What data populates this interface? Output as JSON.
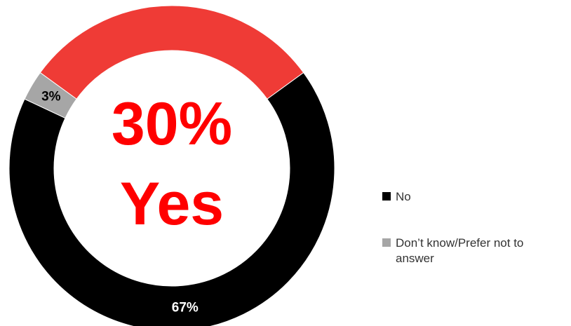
{
  "chart_data": {
    "type": "pie",
    "variant": "donut",
    "slices": [
      {
        "label": "Yes",
        "value": 30,
        "color": "#ef3b36",
        "data_label": ""
      },
      {
        "label": "No",
        "value": 67,
        "color": "#000000",
        "data_label": "67%"
      },
      {
        "label": "Don’t know/Prefer not to answer",
        "value": 3,
        "color": "#a6a6a6",
        "data_label": "3%"
      }
    ],
    "center_label": {
      "value": "30%",
      "text": "Yes",
      "color": "#ff0000"
    },
    "legend": {
      "placement": "right",
      "items": [
        {
          "label": "No",
          "color": "#000000"
        },
        {
          "label": "Don’t know/Prefer not to\nanswer",
          "color": "#a6a6a6"
        }
      ]
    }
  }
}
